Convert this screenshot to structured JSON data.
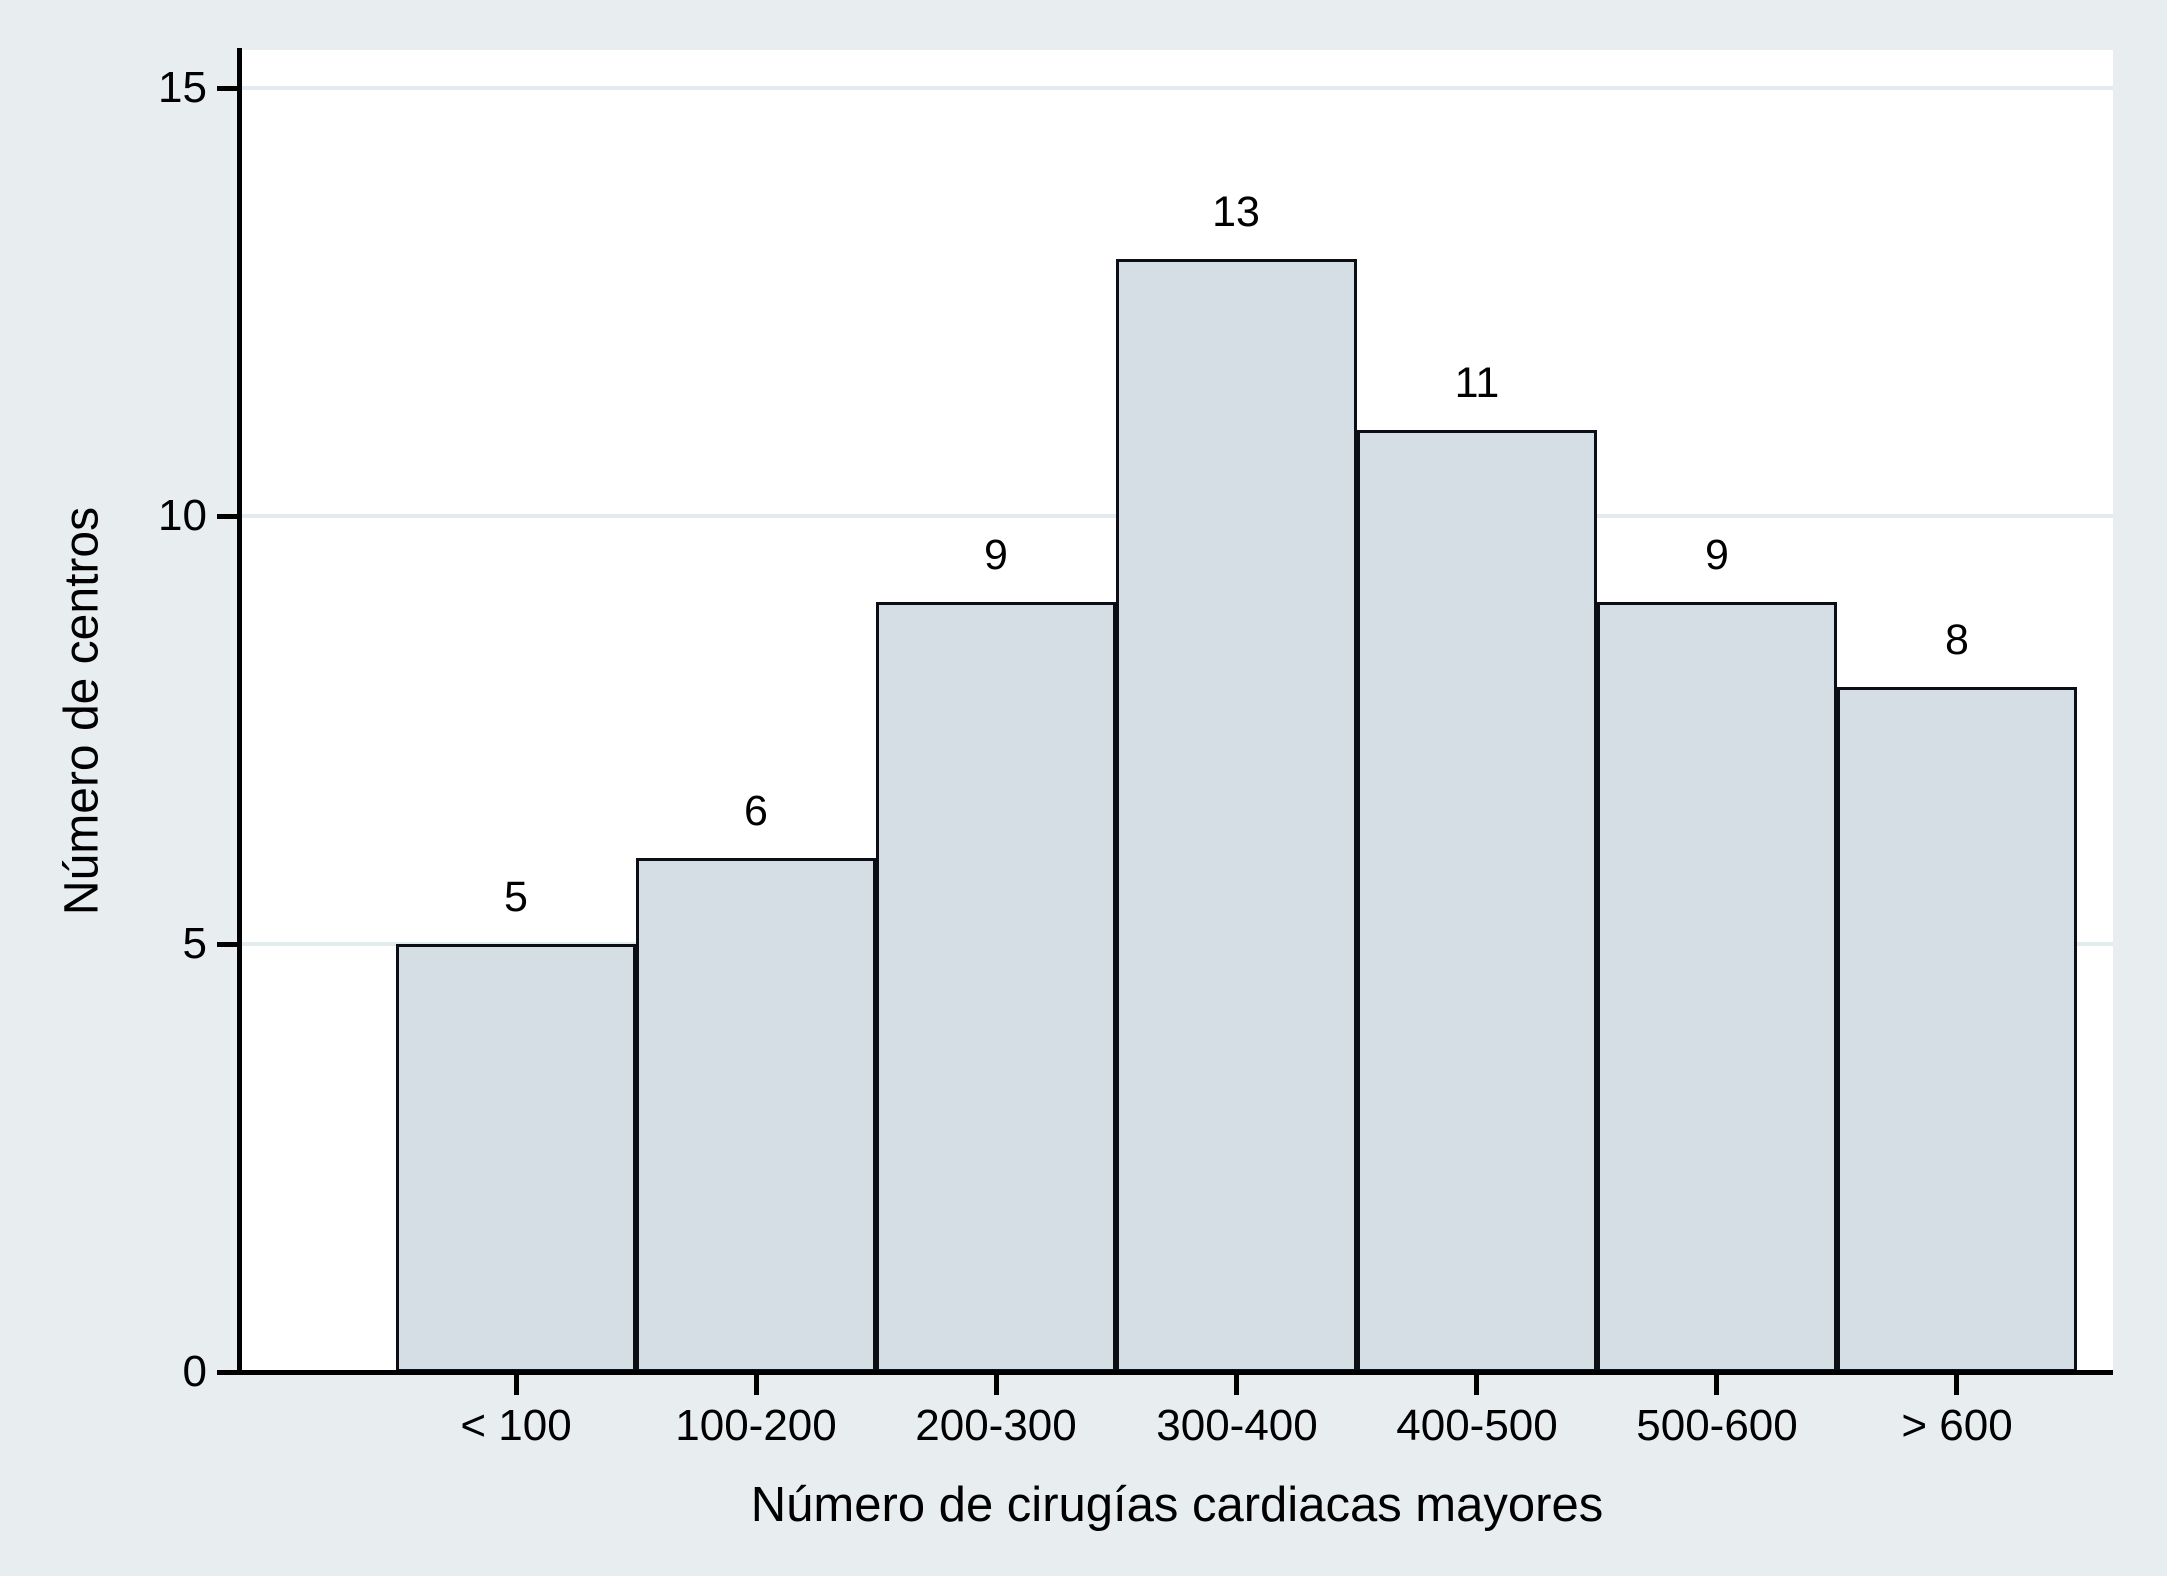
{
  "chart_data": {
    "type": "bar",
    "title": "",
    "categories": [
      "< 100",
      "100-200",
      "200-300",
      "300-400",
      "400-500",
      "500-600",
      "> 600"
    ],
    "values": [
      5,
      6,
      9,
      13,
      11,
      9,
      8
    ],
    "bar_labels": [
      "5",
      "6",
      "9",
      "13",
      "11",
      "9",
      "8"
    ],
    "xlabel": "Número de cirugías cardiacas mayores",
    "ylabel": "Número de centros",
    "ylim": [
      0,
      15
    ],
    "yticks": [
      "0",
      "5",
      "10",
      "15"
    ],
    "grid": "horizontal gridlines at 5, 10, 15",
    "legend": "none",
    "colors": {
      "background": "#E8EEF0",
      "plot_background": "#FFFFFF",
      "bar_fill": "#D4DEE4",
      "bar_border": "#0B0E14",
      "gridline": "#E3EBEE",
      "axis_line": "#000000",
      "text": "#000000"
    }
  }
}
